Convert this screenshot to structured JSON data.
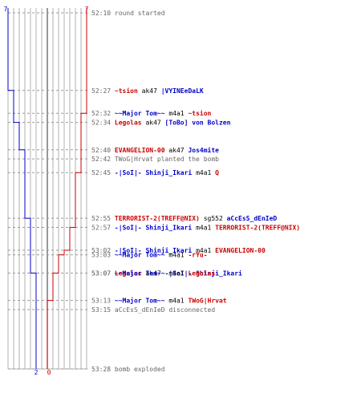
{
  "graph": {
    "ct_start": 7,
    "t_start": 7,
    "ct_end": 2,
    "t_end": 0
  },
  "colors": {
    "ct": "#0000cc",
    "t": "#cc0000",
    "grey_text": "#666666",
    "grid": "#b0b0b0"
  },
  "events": [
    {
      "time": "52:10",
      "parts": [
        {
          "text": "round started",
          "team": "grey"
        }
      ],
      "ct": 7,
      "t": 7
    },
    {
      "time": "52:27",
      "parts": [
        {
          "text": "~tsion",
          "team": "t"
        },
        {
          "text": "ak47",
          "team": "none"
        },
        {
          "text": "|VYINEeDaLK",
          "team": "ct"
        }
      ],
      "ct": 6,
      "t": 7
    },
    {
      "time": "52:32",
      "parts": [
        {
          "text": "~~Major Tom~~",
          "team": "ct"
        },
        {
          "text": "m4a1",
          "team": "none"
        },
        {
          "text": "~tsion",
          "team": "t"
        }
      ],
      "ct": 6,
      "t": 6
    },
    {
      "time": "52:34",
      "parts": [
        {
          "text": "Legolas",
          "team": "t"
        },
        {
          "text": "ak47",
          "team": "none"
        },
        {
          "text": "[ToBo] von Bolzen",
          "team": "ct"
        }
      ],
      "ct": 5,
      "t": 6
    },
    {
      "time": "52:40",
      "parts": [
        {
          "text": "EVANGELION-00",
          "team": "t"
        },
        {
          "text": "ak47",
          "team": "none"
        },
        {
          "text": "Jos4mite",
          "team": "ct"
        }
      ],
      "ct": 4,
      "t": 6
    },
    {
      "time": "52:42",
      "parts": [
        {
          "text": "TWoG|Hrvat planted the bomb",
          "team": "grey"
        }
      ],
      "ct": 4,
      "t": 6
    },
    {
      "time": "52:45",
      "parts": [
        {
          "text": "-|SoI|- Shinji_Ikari",
          "team": "ct"
        },
        {
          "text": "m4a1",
          "team": "none"
        },
        {
          "text": "Q",
          "team": "t"
        }
      ],
      "ct": 4,
      "t": 5
    },
    {
      "time": "52:55",
      "parts": [
        {
          "text": "TERRORIST-2(TREFF@NIX)",
          "team": "t"
        },
        {
          "text": "sg552",
          "team": "none"
        },
        {
          "text": "aCcEsS_dEnIeD",
          "team": "ct"
        }
      ],
      "ct": 3,
      "t": 5
    },
    {
      "time": "52:57",
      "parts": [
        {
          "text": "-|SoI|- Shinji_Ikari",
          "team": "ct"
        },
        {
          "text": "m4a1",
          "team": "none"
        },
        {
          "text": "TERRORIST-2(TREFF@NIX)",
          "team": "t"
        }
      ],
      "ct": 3,
      "t": 4
    },
    {
      "time": "53:02",
      "parts": [
        {
          "text": "-|SoI|- Shinji_Ikari",
          "team": "ct"
        },
        {
          "text": "m4a1",
          "team": "none"
        },
        {
          "text": "EVANGELION-00",
          "team": "t"
        }
      ],
      "ct": 3,
      "t": 3
    },
    {
      "time": "53:03",
      "parts": [
        {
          "text": "~~Major Tom~~",
          "team": "ct"
        },
        {
          "text": "m4a1",
          "team": "none"
        },
        {
          "text": "-rYu-",
          "team": "t"
        }
      ],
      "ct": 3,
      "t": 2
    },
    {
      "time": "53:07",
      "parts": [
        {
          "text": "Legolas",
          "team": "t"
        },
        {
          "text": "ak47",
          "team": "none"
        },
        {
          "text": "-|SoI|- Shinji_Ikari",
          "team": "ct"
        }
      ],
      "ct": 2,
      "t": 2
    },
    {
      "time": "53:07",
      "parts": [
        {
          "text": "~~Major Tom~~",
          "team": "ct"
        },
        {
          "text": "m4a1",
          "team": "none"
        },
        {
          "text": "Legolas",
          "team": "t"
        }
      ],
      "ct": 2,
      "t": 1
    },
    {
      "time": "53:13",
      "parts": [
        {
          "text": "~~Major Tom~~",
          "team": "ct"
        },
        {
          "text": "m4a1",
          "team": "none"
        },
        {
          "text": "TWoG|Hrvat",
          "team": "t"
        }
      ],
      "ct": 2,
      "t": 0
    },
    {
      "time": "53:15",
      "parts": [
        {
          "text": "aCcEsS_dEnIeD disconnected",
          "team": "grey"
        }
      ],
      "ct": 2,
      "t": 0
    },
    {
      "time": "53:28",
      "parts": [
        {
          "text": "bomb exploded",
          "team": "grey"
        }
      ],
      "ct": 2,
      "t": 0
    }
  ]
}
